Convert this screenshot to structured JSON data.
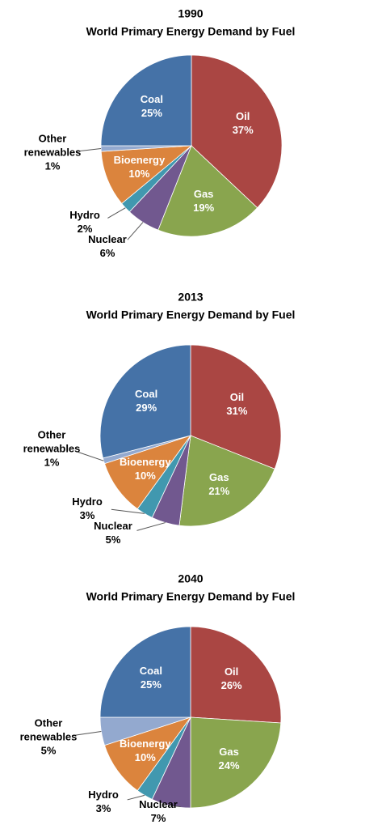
{
  "chart_data": [
    {
      "type": "pie",
      "title": "1990",
      "subtitle": "World Primary Energy Demand by Fuel",
      "categories": [
        "Oil",
        "Gas",
        "Nuclear",
        "Hydro",
        "Bioenergy",
        "Other renewables",
        "Coal"
      ],
      "values": [
        37,
        19,
        6,
        2,
        10,
        1,
        25
      ],
      "value_labels": [
        "37%",
        "19%",
        "6%",
        "2%",
        "10%",
        "1%",
        "25%"
      ],
      "colors": [
        "#aa4643",
        "#89a54e",
        "#71588f",
        "#4198af",
        "#db843d",
        "#93a9cf",
        "#4572a7"
      ]
    },
    {
      "type": "pie",
      "title": "2013",
      "subtitle": "World Primary Energy Demand by Fuel",
      "categories": [
        "Oil",
        "Gas",
        "Nuclear",
        "Hydro",
        "Bioenergy",
        "Other renewables",
        "Coal"
      ],
      "values": [
        31,
        21,
        5,
        3,
        10,
        1,
        29
      ],
      "value_labels": [
        "31%",
        "21%",
        "5%",
        "3%",
        "10%",
        "1%",
        "29%"
      ],
      "colors": [
        "#aa4643",
        "#89a54e",
        "#71588f",
        "#4198af",
        "#db843d",
        "#93a9cf",
        "#4572a7"
      ]
    },
    {
      "type": "pie",
      "title": "2040",
      "subtitle": "World Primary Energy Demand by Fuel",
      "categories": [
        "Oil",
        "Gas",
        "Nuclear",
        "Hydro",
        "Bioenergy",
        "Other renewables",
        "Coal"
      ],
      "values": [
        26,
        24,
        7,
        3,
        10,
        5,
        25
      ],
      "value_labels": [
        "26%",
        "24%",
        "7%",
        "3%",
        "10%",
        "5%",
        "25%"
      ],
      "colors": [
        "#aa4643",
        "#89a54e",
        "#71588f",
        "#4198af",
        "#db843d",
        "#93a9cf",
        "#4572a7"
      ]
    }
  ]
}
